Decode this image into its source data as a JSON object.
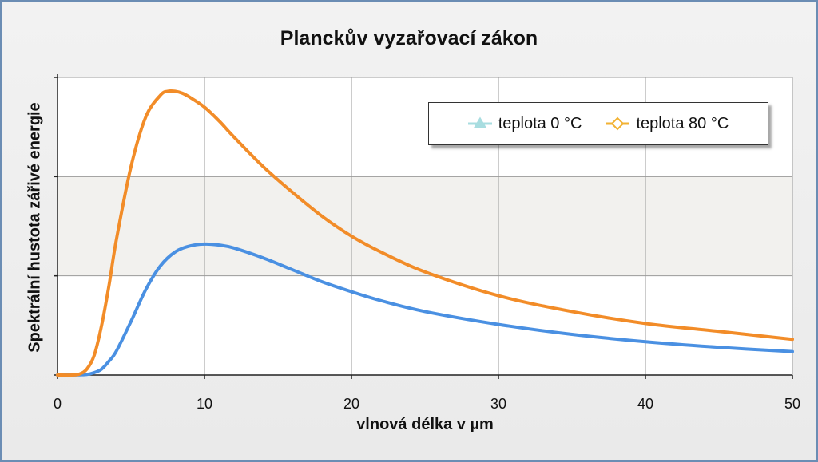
{
  "chart_data": {
    "type": "line",
    "title": "Planckův vyzařovací zákon",
    "xlabel": "vlnová délka v µm",
    "ylabel": "Spektrální hustota zářivé energie",
    "xlim": [
      0,
      50
    ],
    "ylim": [
      0,
      1.5
    ],
    "x_ticks": [
      "0",
      "10",
      "20",
      "30",
      "40",
      "50"
    ],
    "grid": true,
    "legend_position": "top-right",
    "series": [
      {
        "name": "teplota 0 °C",
        "color": "#4a90e2",
        "marker": "triangle",
        "marker_color": "#a8dde0",
        "x": [
          0,
          1,
          1.5,
          2,
          2.5,
          3,
          3.5,
          4,
          5,
          6,
          7,
          8,
          9,
          10,
          11,
          12,
          14,
          16,
          18,
          20,
          22,
          25,
          30,
          35,
          40,
          45,
          50
        ],
        "y": [
          0,
          0,
          0.001,
          0.003,
          0.012,
          0.03,
          0.07,
          0.12,
          0.27,
          0.43,
          0.55,
          0.62,
          0.65,
          0.66,
          0.655,
          0.64,
          0.59,
          0.53,
          0.47,
          0.42,
          0.375,
          0.32,
          0.255,
          0.205,
          0.168,
          0.14,
          0.118
        ]
      },
      {
        "name": "teplota 80 °C",
        "color": "#f28c28",
        "marker": "diamond",
        "marker_color": "#f2b233",
        "x": [
          0,
          1,
          1.5,
          2,
          2.5,
          3,
          3.5,
          4,
          5,
          6,
          7,
          7.5,
          8,
          8.5,
          9,
          10,
          11,
          12,
          14,
          16,
          18,
          20,
          22,
          25,
          30,
          35,
          40,
          45,
          50
        ],
        "y": [
          0,
          0,
          0.005,
          0.03,
          0.1,
          0.25,
          0.45,
          0.68,
          1.05,
          1.3,
          1.41,
          1.43,
          1.43,
          1.42,
          1.4,
          1.35,
          1.28,
          1.2,
          1.05,
          0.92,
          0.8,
          0.7,
          0.62,
          0.52,
          0.4,
          0.32,
          0.26,
          0.22,
          0.18
        ]
      }
    ]
  }
}
